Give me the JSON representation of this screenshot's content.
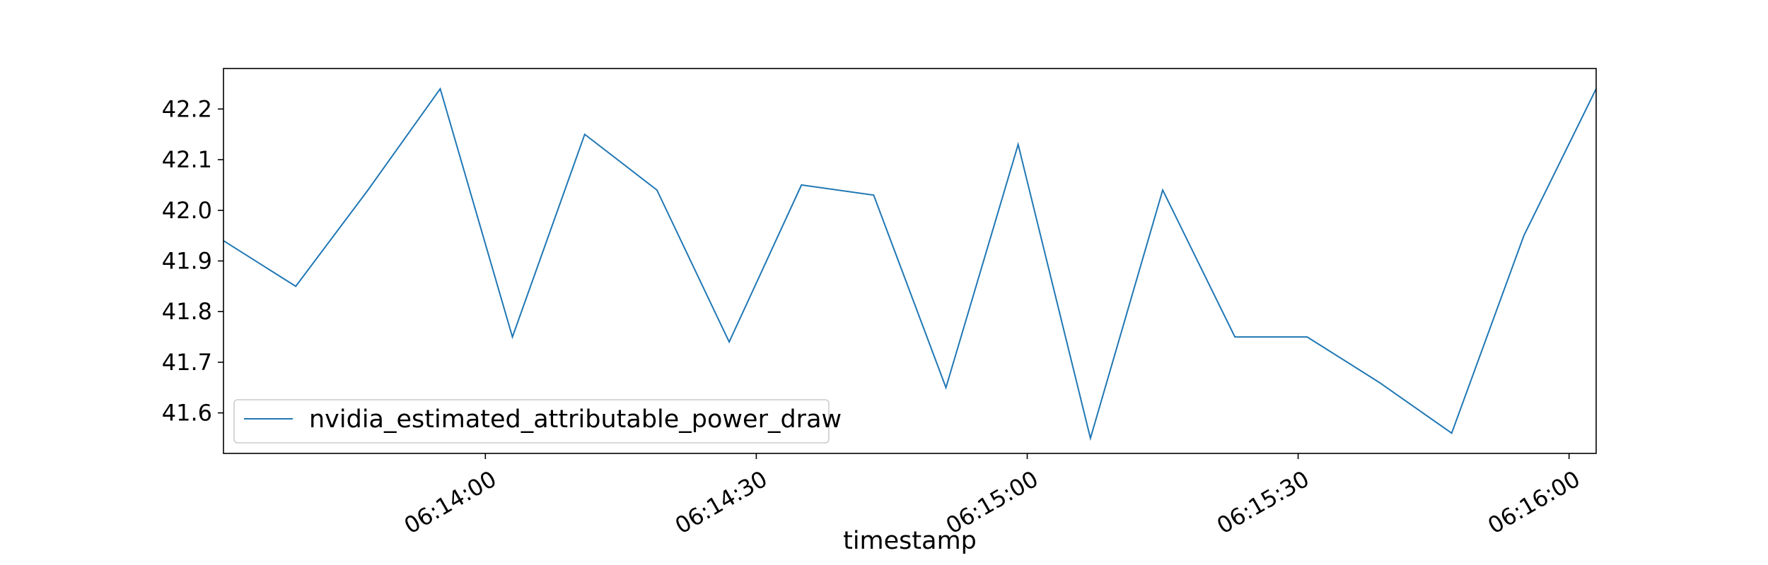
{
  "chart_data": {
    "type": "line",
    "title": "",
    "xlabel": "timestamp",
    "ylabel": "",
    "x_tick_labels": [
      "06:14:00",
      "06:14:30",
      "06:15:00",
      "06:15:30",
      "06:16:00"
    ],
    "y_tick_labels": [
      "41.6",
      "41.7",
      "41.8",
      "41.9",
      "42.0",
      "42.1",
      "42.2"
    ],
    "y_ticks": [
      41.6,
      41.7,
      41.8,
      41.9,
      42.0,
      42.1,
      42.2
    ],
    "ylim": [
      41.52,
      42.28
    ],
    "xlim": [
      "06:13:31",
      "06:16:03"
    ],
    "grid": false,
    "legend_position": "lower-left",
    "series": [
      {
        "name": "nvidia_estimated_attributable_power_draw",
        "color": "#1f77b4",
        "x": [
          "06:13:31",
          "06:13:39",
          "06:13:47",
          "06:13:55",
          "06:14:03",
          "06:14:11",
          "06:14:19",
          "06:14:27",
          "06:14:35",
          "06:14:43",
          "06:14:51",
          "06:14:59",
          "06:15:07",
          "06:15:15",
          "06:15:23",
          "06:15:31",
          "06:15:39",
          "06:15:47",
          "06:15:55",
          "06:16:03"
        ],
        "values": [
          41.94,
          41.85,
          42.04,
          42.24,
          41.75,
          42.15,
          42.04,
          41.74,
          42.05,
          42.03,
          41.65,
          42.13,
          41.55,
          42.04,
          41.75,
          41.75,
          41.66,
          41.56,
          41.95,
          42.24
        ]
      }
    ]
  }
}
